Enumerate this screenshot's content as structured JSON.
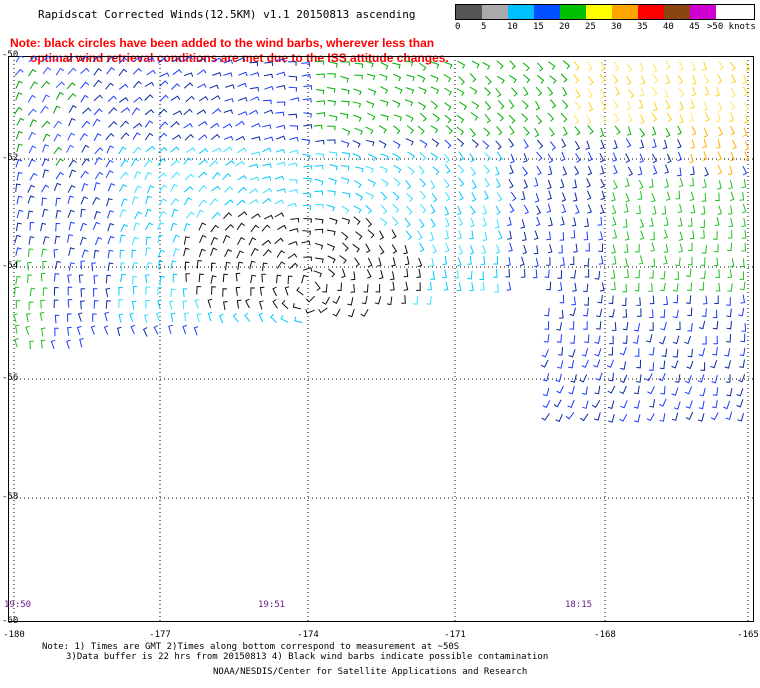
{
  "title": "Rapidscat Corrected Winds(12.5KM) v1.1 20150813 ascending",
  "note_lines": [
    "Note: black circles have been added to the wind barbs, wherever less than",
    "      optimal wind retrieval conditions are met due to the ISS attitude changes."
  ],
  "legend": {
    "ticks": [
      "0",
      "5",
      "10",
      "15",
      "20",
      "25",
      "30",
      "35",
      "40",
      "45",
      ">50 knots"
    ],
    "colors": [
      "#555555",
      "#aaaaaa",
      "#00bfff",
      "#0050ff",
      "#00c000",
      "#ffff00",
      "#ffa500",
      "#ff0000",
      "#8b4513",
      "#d000d0",
      "#5a0080"
    ]
  },
  "axes": {
    "lat_ticks": [
      "-50",
      "-52",
      "-54",
      "-56",
      "-58",
      "-60"
    ],
    "lon_ticks": [
      "-180",
      "-177",
      "-174",
      "-171",
      "-168",
      "-165"
    ]
  },
  "times": [
    "19:50",
    "19:51",
    "18:15"
  ],
  "footer": {
    "line1": "Note: 1) Times are GMT 2)Times along bottom correspond to measurement at ~50S",
    "line2": "3)Data buffer is 22 hrs from 20150813 4) Black wind barbs indicate possible contamination",
    "line3": "NOAA/NESDIS/Center for Satellite Applications and Research"
  }
}
